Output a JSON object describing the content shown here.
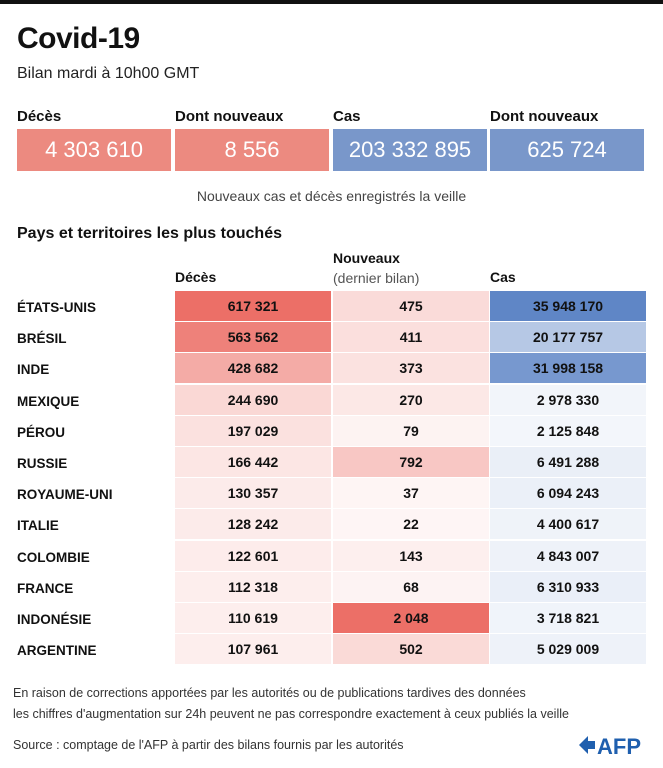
{
  "title": "Covid-19",
  "subtitle": "Bilan mardi à 10h00 GMT",
  "summary": {
    "items": [
      {
        "label": "Décès",
        "value": "4 303 610",
        "color": "#ec8a80"
      },
      {
        "label": "Dont nouveaux",
        "value": "8 556",
        "color": "#ec8a80"
      },
      {
        "label": "Cas",
        "value": "203 332 895",
        "color": "#7997ca"
      },
      {
        "label": "Dont nouveaux",
        "value": "625 724",
        "color": "#7997ca"
      }
    ],
    "note": "Nouveaux cas et décès enregistrés la veille"
  },
  "section_title": "Pays et territoires les plus touchés",
  "columns": {
    "deaths": "Décès",
    "new_line1": "Nouveaux",
    "new_line2": "(dernier bilan)",
    "cases": "Cas"
  },
  "colors": {
    "red": "#ec6f67",
    "blue": "#5f86c6"
  },
  "chart_data": {
    "type": "table",
    "title": "Pays et territoires les plus touchés",
    "columns": [
      "Décès",
      "Nouveaux (dernier bilan)",
      "Cas"
    ],
    "rows": [
      {
        "country": "ÉTATS-UNIS",
        "deaths": 617321,
        "new": 475,
        "cases": 35948170,
        "deaths_label": "617 321",
        "new_label": "475",
        "cases_label": "35 948 170"
      },
      {
        "country": "BRÉSIL",
        "deaths": 563562,
        "new": 411,
        "cases": 20177757,
        "deaths_label": "563 562",
        "new_label": "411",
        "cases_label": "20 177 757"
      },
      {
        "country": "INDE",
        "deaths": 428682,
        "new": 373,
        "cases": 31998158,
        "deaths_label": "428 682",
        "new_label": "373",
        "cases_label": "31 998 158"
      },
      {
        "country": "MEXIQUE",
        "deaths": 244690,
        "new": 270,
        "cases": 2978330,
        "deaths_label": "244 690",
        "new_label": "270",
        "cases_label": "2 978 330"
      },
      {
        "country": "PÉROU",
        "deaths": 197029,
        "new": 79,
        "cases": 2125848,
        "deaths_label": "197 029",
        "new_label": "79",
        "cases_label": "2 125 848"
      },
      {
        "country": "RUSSIE",
        "deaths": 166442,
        "new": 792,
        "cases": 6491288,
        "deaths_label": "166 442",
        "new_label": "792",
        "cases_label": "6 491 288"
      },
      {
        "country": "ROYAUME-UNI",
        "deaths": 130357,
        "new": 37,
        "cases": 6094243,
        "deaths_label": "130 357",
        "new_label": "37",
        "cases_label": "6 094 243"
      },
      {
        "country": "ITALIE",
        "deaths": 128242,
        "new": 22,
        "cases": 4400617,
        "deaths_label": "128 242",
        "new_label": "22",
        "cases_label": "4 400 617"
      },
      {
        "country": "COLOMBIE",
        "deaths": 122601,
        "new": 143,
        "cases": 4843007,
        "deaths_label": "122 601",
        "new_label": "143",
        "cases_label": "4 843 007"
      },
      {
        "country": "FRANCE",
        "deaths": 112318,
        "new": 68,
        "cases": 6310933,
        "deaths_label": "112 318",
        "new_label": "68",
        "cases_label": "6 310 933"
      },
      {
        "country": "INDONÉSIE",
        "deaths": 110619,
        "new": 2048,
        "cases": 3718821,
        "deaths_label": "110 619",
        "new_label": "2 048",
        "cases_label": "3 718 821"
      },
      {
        "country": "ARGENTINE",
        "deaths": 107961,
        "new": 502,
        "cases": 5029009,
        "deaths_label": "107 961",
        "new_label": "502",
        "cases_label": "5 029 009"
      }
    ]
  },
  "footnote": {
    "line1": "En raison de corrections apportées par les autorités ou de publications tardives des données",
    "line2": "les chiffres d'augmentation sur 24h peuvent ne pas correspondre exactement à ceux publiés la veille"
  },
  "source": "Source : comptage de l'AFP à partir des bilans fournis par les autorités",
  "logo_text": "AFP"
}
